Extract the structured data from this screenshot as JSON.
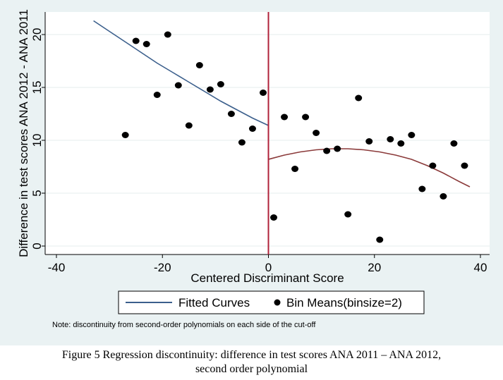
{
  "chart_data": {
    "type": "scatter",
    "xlabel": "Centered Discriminant Score",
    "ylabel": "Difference in test scores ANA 2012 - ANA 2011",
    "xlim": [
      -40,
      40
    ],
    "ylim": [
      0,
      22
    ],
    "x_ticks": [
      -40,
      -20,
      0,
      20,
      40
    ],
    "y_ticks": [
      0,
      5,
      10,
      15,
      20
    ],
    "cutoff": 0,
    "grid": "horizontal",
    "legend": {
      "entries": [
        {
          "label": "Fitted Curves",
          "symbol": "line"
        },
        {
          "label": "Bin Means(binsize=2)",
          "symbol": "dot"
        }
      ],
      "position": "bottom"
    },
    "note": "Note: discontinuity from second-order polynomials on each side of the cut-off",
    "series": [
      {
        "name": "Bin Means(binsize=2)",
        "type": "scatter",
        "color": "#000000",
        "points": [
          {
            "x": -27,
            "y": 10.5
          },
          {
            "x": -25,
            "y": 19.4
          },
          {
            "x": -23,
            "y": 19.1
          },
          {
            "x": -21,
            "y": 14.3
          },
          {
            "x": -19,
            "y": 20.0
          },
          {
            "x": -17,
            "y": 15.2
          },
          {
            "x": -15,
            "y": 11.4
          },
          {
            "x": -13,
            "y": 17.1
          },
          {
            "x": -11,
            "y": 14.8
          },
          {
            "x": -9,
            "y": 15.3
          },
          {
            "x": -7,
            "y": 12.5
          },
          {
            "x": -5,
            "y": 9.8
          },
          {
            "x": -3,
            "y": 11.1
          },
          {
            "x": -1,
            "y": 14.5
          },
          {
            "x": 1,
            "y": 2.7
          },
          {
            "x": 3,
            "y": 12.2
          },
          {
            "x": 5,
            "y": 7.3
          },
          {
            "x": 7,
            "y": 12.2
          },
          {
            "x": 9,
            "y": 10.7
          },
          {
            "x": 11,
            "y": 9.0
          },
          {
            "x": 13,
            "y": 9.2
          },
          {
            "x": 15,
            "y": 3.0
          },
          {
            "x": 17,
            "y": 14.0
          },
          {
            "x": 19,
            "y": 9.9
          },
          {
            "x": 21,
            "y": 0.6
          },
          {
            "x": 23,
            "y": 10.1
          },
          {
            "x": 25,
            "y": 9.7
          },
          {
            "x": 27,
            "y": 10.5
          },
          {
            "x": 29,
            "y": 5.4
          },
          {
            "x": 31,
            "y": 7.6
          },
          {
            "x": 33,
            "y": 4.7
          },
          {
            "x": 35,
            "y": 9.7
          },
          {
            "x": 37,
            "y": 7.6
          }
        ]
      },
      {
        "name": "Fitted Curves (left of cut-off)",
        "type": "line",
        "color": "#3b5f8c",
        "points": [
          {
            "x": -33,
            "y": 21.3
          },
          {
            "x": -30,
            "y": 20.3
          },
          {
            "x": -27,
            "y": 19.3
          },
          {
            "x": -24,
            "y": 18.3
          },
          {
            "x": -21,
            "y": 17.3
          },
          {
            "x": -18,
            "y": 16.4
          },
          {
            "x": -15,
            "y": 15.5
          },
          {
            "x": -12,
            "y": 14.6
          },
          {
            "x": -9,
            "y": 13.7
          },
          {
            "x": -6,
            "y": 12.9
          },
          {
            "x": -3,
            "y": 12.1
          },
          {
            "x": 0,
            "y": 11.4
          }
        ]
      },
      {
        "name": "Fitted Curves (right of cut-off)",
        "type": "line",
        "color": "#8b3a3a",
        "points": [
          {
            "x": 0,
            "y": 8.2
          },
          {
            "x": 3,
            "y": 8.6
          },
          {
            "x": 6,
            "y": 8.9
          },
          {
            "x": 9,
            "y": 9.1
          },
          {
            "x": 12,
            "y": 9.2
          },
          {
            "x": 15,
            "y": 9.2
          },
          {
            "x": 18,
            "y": 9.1
          },
          {
            "x": 21,
            "y": 8.9
          },
          {
            "x": 24,
            "y": 8.6
          },
          {
            "x": 27,
            "y": 8.2
          },
          {
            "x": 30,
            "y": 7.6
          },
          {
            "x": 33,
            "y": 6.9
          },
          {
            "x": 36,
            "y": 6.1
          },
          {
            "x": 38,
            "y": 5.6
          }
        ]
      }
    ],
    "cutoff_line_color": "#b0213a"
  },
  "caption": {
    "line1": "Figure 5   Regression discontinuity: difference in test scores ANA 2011 – ANA 2012,",
    "line2": "second order polynomial"
  }
}
